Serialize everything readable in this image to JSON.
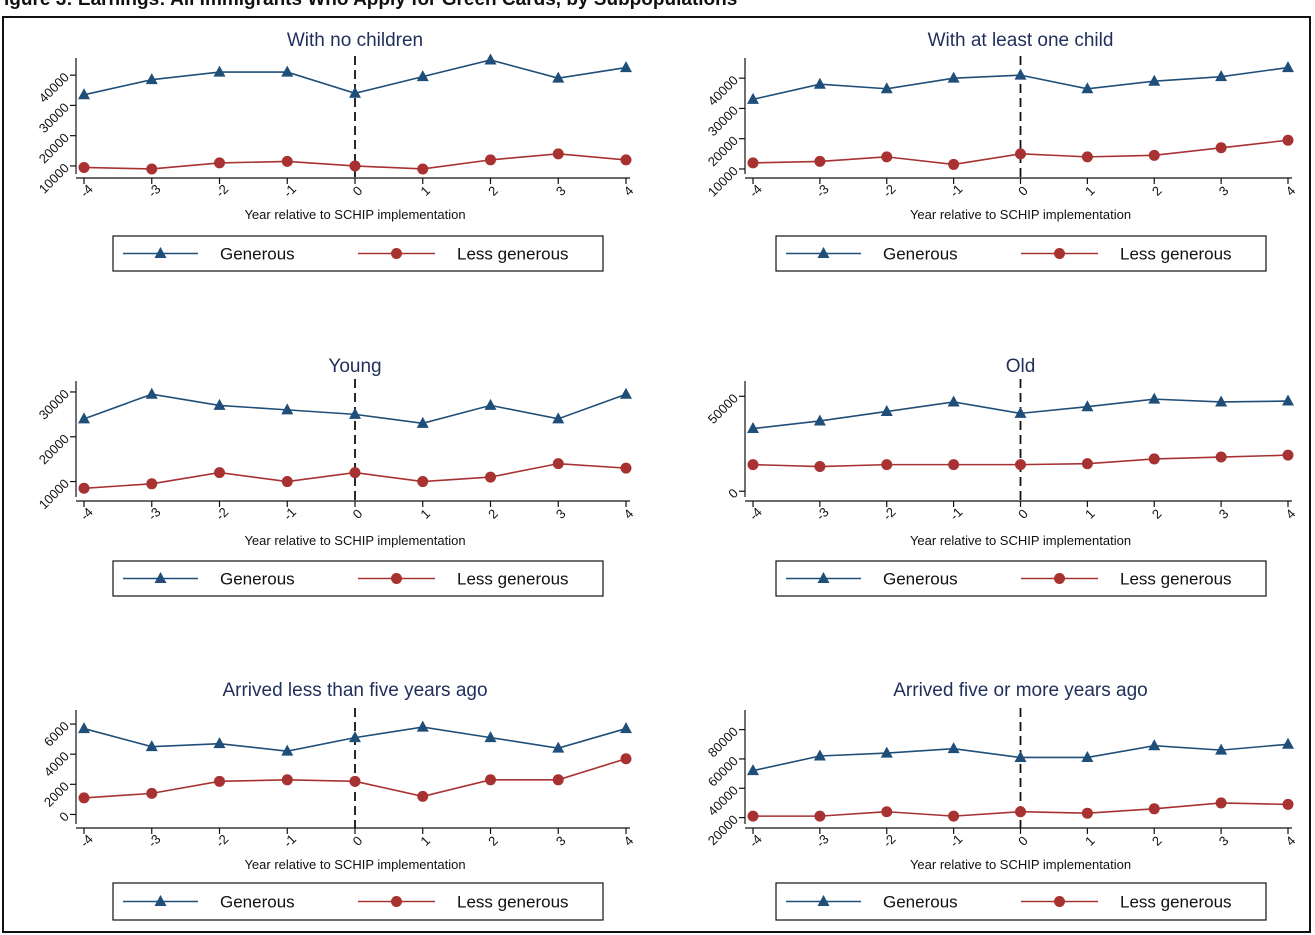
{
  "caption": "igure 3: Earnings: All Immigrants Who Apply for Green Cards, by Subpopulations",
  "colors": {
    "generous": "#1f4e79",
    "less_generous": "#a83232"
  },
  "chart_data": [
    {
      "type": "line",
      "title": "With no children",
      "xlabel": "Year relative to SCHIP implementation",
      "x": [
        -4,
        -3,
        -2,
        -1,
        0,
        1,
        2,
        3,
        4
      ],
      "ylim": [
        8000,
        45000
      ],
      "yticks": [
        10000,
        20000,
        30000,
        40000
      ],
      "vline": 0,
      "legend": "bottom",
      "series": [
        {
          "name": "Generous",
          "marker": "triangle",
          "values": [
            33500,
            38500,
            41000,
            41000,
            34000,
            39500,
            45000,
            39000,
            42500
          ]
        },
        {
          "name": "Less generous",
          "marker": "circle",
          "values": [
            9500,
            9000,
            11000,
            11500,
            10000,
            9000,
            12000,
            14000,
            12000
          ]
        }
      ]
    },
    {
      "type": "line",
      "title": "With at least one child",
      "xlabel": "Year relative to SCHIP implementation",
      "x": [
        -4,
        -3,
        -2,
        -1,
        0,
        1,
        2,
        3,
        4
      ],
      "ylim": [
        9000,
        46000
      ],
      "yticks": [
        10000,
        20000,
        30000,
        40000
      ],
      "vline": 0,
      "legend": "bottom",
      "series": [
        {
          "name": "Generous",
          "marker": "triangle",
          "values": [
            33000,
            38000,
            36500,
            40000,
            41000,
            36500,
            39000,
            40500,
            43500
          ]
        },
        {
          "name": "Less generous",
          "marker": "circle",
          "values": [
            12000,
            12500,
            14000,
            11500,
            15000,
            14000,
            14500,
            17000,
            19500
          ]
        }
      ]
    },
    {
      "type": "line",
      "title": "Young",
      "xlabel": "Year relative to SCHIP implementation",
      "x": [
        -4,
        -3,
        -2,
        -1,
        0,
        1,
        2,
        3,
        4
      ],
      "ylim": [
        7000,
        32000
      ],
      "yticks": [
        10000,
        20000,
        30000
      ],
      "vline": 0,
      "legend": "bottom",
      "series": [
        {
          "name": "Generous",
          "marker": "triangle",
          "values": [
            24000,
            29500,
            27000,
            26000,
            25000,
            23000,
            27000,
            24000,
            29500
          ]
        },
        {
          "name": "Less generous",
          "marker": "circle",
          "values": [
            8500,
            9500,
            12000,
            10000,
            12000,
            10000,
            11000,
            14000,
            13000
          ]
        }
      ]
    },
    {
      "type": "line",
      "title": "Old",
      "xlabel": "Year relative to SCHIP implementation",
      "x": [
        -4,
        -3,
        -2,
        -1,
        0,
        1,
        2,
        3,
        4
      ],
      "ylim": [
        -2000,
        57000
      ],
      "yticks": [
        0,
        50000
      ],
      "vline": 0,
      "legend": "bottom",
      "series": [
        {
          "name": "Generous",
          "marker": "triangle",
          "values": [
            33000,
            37000,
            42000,
            47000,
            41000,
            44500,
            48500,
            47000,
            47500
          ]
        },
        {
          "name": "Less generous",
          "marker": "circle",
          "values": [
            14000,
            13000,
            14000,
            14000,
            14000,
            14500,
            17000,
            18000,
            19000
          ]
        }
      ]
    },
    {
      "type": "line",
      "title": "Arrived less than five years ago",
      "xlabel": "Year relative to SCHIP implementation",
      "x": [
        -4,
        -3,
        -2,
        -1,
        0,
        1,
        2,
        3,
        4
      ],
      "ylim": [
        -500,
        6800
      ],
      "yticks": [
        0,
        2000,
        4000,
        6000
      ],
      "vline": 0,
      "legend": "bottom",
      "series": [
        {
          "name": "Generous",
          "marker": "triangle",
          "values": [
            5700,
            4500,
            4700,
            4200,
            5100,
            5800,
            5100,
            4400,
            5700
          ]
        },
        {
          "name": "Less generous",
          "marker": "circle",
          "values": [
            1100,
            1400,
            2200,
            2300,
            2200,
            1200,
            2300,
            2300,
            3700
          ]
        }
      ]
    },
    {
      "type": "line",
      "title": "Arrived five or more years ago",
      "xlabel": "Year relative to SCHIP implementation",
      "x": [
        -4,
        -3,
        -2,
        -1,
        0,
        1,
        2,
        3,
        4
      ],
      "ylim": [
        17000,
        92000
      ],
      "yticks": [
        20000,
        40000,
        60000,
        80000
      ],
      "vline": 0,
      "legend": "bottom",
      "series": [
        {
          "name": "Generous",
          "marker": "triangle",
          "values": [
            52000,
            62000,
            64000,
            67000,
            61000,
            61000,
            69000,
            66000,
            70000
          ]
        },
        {
          "name": "Less generous",
          "marker": "circle",
          "values": [
            21000,
            21000,
            24000,
            21000,
            24000,
            23000,
            26000,
            30000,
            29000
          ]
        }
      ]
    }
  ]
}
